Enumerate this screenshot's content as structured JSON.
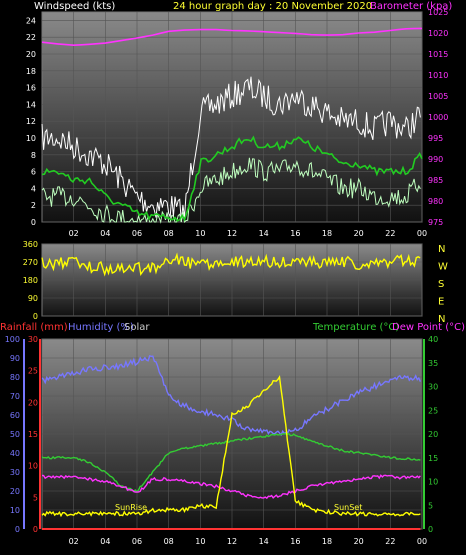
{
  "colors": {
    "wind": "#ffffff",
    "wind_avg": "#22cc22",
    "wind_min": "#bfffbf",
    "baro": "#ff33ff",
    "dir": "#ffff00",
    "rain": "#ff3333",
    "humidity": "#7777ff",
    "solar": "#ffff00",
    "temperature": "#33cc33",
    "dewpoint": "#ff33ff"
  },
  "chart_data": [
    {
      "type": "line",
      "title": "24 hour graph day : 20 November 2020",
      "ylabel": "Windspeed (kts)",
      "y2label": "Barometer (kpa)",
      "x_ticks": [
        "02",
        "04",
        "06",
        "08",
        "10",
        "12",
        "14",
        "16",
        "18",
        "20",
        "22",
        "00"
      ],
      "y_ticks": [
        "0",
        "2",
        "4",
        "6",
        "8",
        "10",
        "12",
        "14",
        "16",
        "18",
        "20",
        "22",
        "24"
      ],
      "y2_ticks": [
        "975",
        "980",
        "985",
        "990",
        "995",
        "1000",
        "1005",
        "1010",
        "1015",
        "1020",
        "1025"
      ],
      "ylim": [
        0,
        25
      ],
      "y2lim": [
        975,
        1025
      ],
      "x_hours": [
        0,
        1,
        2,
        3,
        4,
        5,
        6,
        7,
        8,
        9,
        10,
        11,
        12,
        13,
        14,
        15,
        16,
        17,
        18,
        19,
        20,
        21,
        22,
        23,
        24
      ],
      "series": [
        {
          "name": "Barometer (kpa)",
          "axis": "right",
          "values": [
            1017.8,
            1017.4,
            1017.1,
            1017.3,
            1017.6,
            1018.2,
            1018.8,
            1019.5,
            1020.4,
            1020.7,
            1020.8,
            1020.8,
            1020.6,
            1020.5,
            1020.3,
            1020.1,
            1019.9,
            1019.6,
            1019.5,
            1019.6,
            1020.0,
            1020.2,
            1020.6,
            1021.0,
            1021.1
          ]
        },
        {
          "axis": "left",
          "values": [
            10,
            10,
            9,
            8,
            7,
            5,
            3,
            2,
            2,
            1,
            13,
            14,
            15,
            16,
            15,
            14,
            15,
            14,
            13,
            12,
            12,
            11,
            12,
            11,
            13
          ]
        },
        {
          "axis": "left",
          "values": [
            6,
            6,
            5,
            5,
            3,
            2,
            1,
            0.6,
            0.6,
            0.4,
            7,
            8,
            9,
            10,
            9,
            9,
            10,
            9,
            8,
            7,
            7,
            6,
            6,
            6,
            8
          ]
        },
        {
          "axis": "left",
          "values": [
            3,
            3,
            3,
            2,
            1,
            0.5,
            0.2,
            0,
            0,
            0,
            4,
            5,
            6,
            7,
            6,
            6,
            7,
            6,
            5,
            4,
            4,
            3,
            3,
            3,
            5
          ]
        }
      ]
    },
    {
      "type": "scatter",
      "x_ticks": [
        "02",
        "04",
        "06",
        "08",
        "10",
        "12",
        "14",
        "16",
        "18",
        "20",
        "22",
        "00"
      ],
      "y_ticks": [
        "0",
        "90",
        "180",
        "270",
        "360"
      ],
      "ylim": [
        0,
        360
      ],
      "compass": [
        "N",
        "W",
        "S",
        "E",
        "N"
      ],
      "x_hours": [
        0,
        1,
        2,
        3,
        4,
        5,
        6,
        7,
        8,
        9,
        10,
        11,
        12,
        13,
        14,
        15,
        16,
        17,
        18,
        19,
        20,
        21,
        22,
        23,
        24
      ],
      "values": [
        262,
        265,
        268,
        245,
        238,
        238,
        238,
        240,
        290,
        270,
        262,
        268,
        270,
        265,
        270,
        268,
        262,
        268,
        270,
        268,
        262,
        272,
        275,
        278,
        280
      ]
    },
    {
      "type": "line",
      "labels": {
        "rain": "Rainfall (mm)",
        "humidity": "Humidity (%)",
        "solar": "Solar",
        "temperature": "Temperature (°C)",
        "dewpoint": "Dew Point (°C)"
      },
      "sunrise_label": "SunRise",
      "sunset_label": "SunSet",
      "x_ticks": [
        "02",
        "04",
        "06",
        "08",
        "10",
        "12",
        "14",
        "16",
        "18",
        "20",
        "22",
        "00"
      ],
      "humidity_ticks": [
        "0",
        "10",
        "20",
        "30",
        "40",
        "50",
        "60",
        "70",
        "80",
        "90",
        "100"
      ],
      "rain_ticks": [
        "0",
        "5",
        "10",
        "15",
        "20",
        "25",
        "30"
      ],
      "temp_ticks": [
        "0",
        "5",
        "10",
        "15",
        "20",
        "25",
        "30",
        "35",
        "40"
      ],
      "x_hours": [
        0,
        1,
        2,
        3,
        4,
        5,
        6,
        7,
        8,
        9,
        10,
        11,
        12,
        13,
        14,
        15,
        16,
        17,
        18,
        19,
        20,
        21,
        22,
        23,
        24
      ],
      "series": [
        {
          "name": "Humidity (%)",
          "axis": "humidity",
          "ylim": [
            0,
            100
          ],
          "values": [
            78,
            80,
            82,
            84,
            85,
            86,
            88,
            91,
            70,
            65,
            62,
            60,
            57,
            53,
            52,
            50,
            52,
            58,
            63,
            68,
            72,
            75,
            78,
            80,
            79
          ]
        },
        {
          "name": "Temperature (°C)",
          "axis": "temperature",
          "ylim": [
            0,
            40
          ],
          "values": [
            15,
            15,
            15,
            14,
            12,
            9,
            8,
            12,
            16,
            17,
            17.5,
            18,
            18.5,
            19,
            19.5,
            20,
            19.8,
            18.5,
            17.5,
            16.5,
            16,
            15.5,
            15,
            14.8,
            14.5
          ]
        },
        {
          "name": "Dew Point (°C)",
          "axis": "temperature",
          "ylim": [
            0,
            40
          ],
          "values": [
            11,
            11,
            11,
            10.5,
            10,
            9,
            7.5,
            10.5,
            10.5,
            10,
            9.5,
            9,
            8,
            7,
            6.5,
            7,
            8,
            9,
            9.5,
            10,
            10.5,
            11,
            11,
            10.8,
            11
          ]
        },
        {
          "name": "Solar",
          "axis": "solar_percent",
          "ylim": [
            0,
            100
          ],
          "values": [
            8,
            8,
            8,
            8,
            8,
            8,
            8,
            10,
            10,
            10,
            12,
            12,
            60,
            65,
            73,
            80,
            15,
            10,
            9,
            8,
            8,
            8,
            8,
            8,
            8
          ]
        },
        {
          "name": "Rainfall (mm)",
          "axis": "rain",
          "ylim": [
            0,
            30
          ],
          "values": [
            0,
            0,
            0,
            0,
            0,
            0,
            0,
            0,
            0,
            0,
            0,
            0,
            0,
            0,
            0,
            0,
            0,
            0,
            0,
            0,
            0,
            0,
            0,
            0,
            0
          ]
        }
      ]
    }
  ]
}
